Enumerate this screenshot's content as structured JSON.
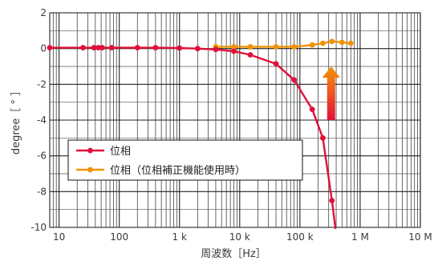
{
  "chart_data": {
    "type": "line",
    "xscale": "log",
    "xlim": [
      7,
      10000000
    ],
    "ylim": [
      -10,
      2
    ],
    "xlabel": "周波数［Hz］",
    "ylabel": "degree［ ° ］",
    "x_ticks": [
      {
        "value": 10,
        "label": "10"
      },
      {
        "value": 100,
        "label": "100"
      },
      {
        "value": 1000,
        "label": "1 k"
      },
      {
        "value": 10000,
        "label": "10 k"
      },
      {
        "value": 100000,
        "label": "100 k"
      },
      {
        "value": 1000000,
        "label": "1 M"
      },
      {
        "value": 10000000,
        "label": "10 M"
      }
    ],
    "y_ticks": [
      {
        "value": 2,
        "label": "2"
      },
      {
        "value": 0,
        "label": "0"
      },
      {
        "value": -2,
        "label": "-2"
      },
      {
        "value": -4,
        "label": "-4"
      },
      {
        "value": -6,
        "label": "-6"
      },
      {
        "value": -8,
        "label": "-8"
      },
      {
        "value": -10,
        "label": "-10"
      }
    ],
    "grid": true,
    "legend_position": "bottom-left",
    "series": [
      {
        "name": "位相",
        "color": "#e0103a",
        "points": [
          [
            7,
            0.05
          ],
          [
            25,
            0.05
          ],
          [
            38,
            0.05
          ],
          [
            45,
            0.05
          ],
          [
            52,
            0.05
          ],
          [
            75,
            0.05
          ],
          [
            200,
            0.05
          ],
          [
            400,
            0.05
          ],
          [
            1000,
            0.03
          ],
          [
            2000,
            0.0
          ],
          [
            4000,
            -0.05
          ],
          [
            8000,
            -0.15
          ],
          [
            15000,
            -0.35
          ],
          [
            40000,
            -0.85
          ],
          [
            80000,
            -1.75
          ],
          [
            160000,
            -3.4
          ],
          [
            240000,
            -5.0
          ],
          [
            340000,
            -8.5
          ]
        ],
        "tail": [
          390000,
          -10.4
        ]
      },
      {
        "name": "位相（位相補正機能使用時）",
        "color": "#f39200",
        "points": [
          [
            4000,
            0.1
          ],
          [
            8000,
            0.1
          ],
          [
            15000,
            0.1
          ],
          [
            40000,
            0.1
          ],
          [
            80000,
            0.1
          ],
          [
            160000,
            0.2
          ],
          [
            240000,
            0.3
          ],
          [
            340000,
            0.4
          ],
          [
            500000,
            0.35
          ],
          [
            700000,
            0.3
          ]
        ]
      }
    ],
    "annotation_arrow": {
      "x": 330000,
      "y_from": -4.0,
      "y_to": -1.0,
      "direction": "up"
    }
  }
}
